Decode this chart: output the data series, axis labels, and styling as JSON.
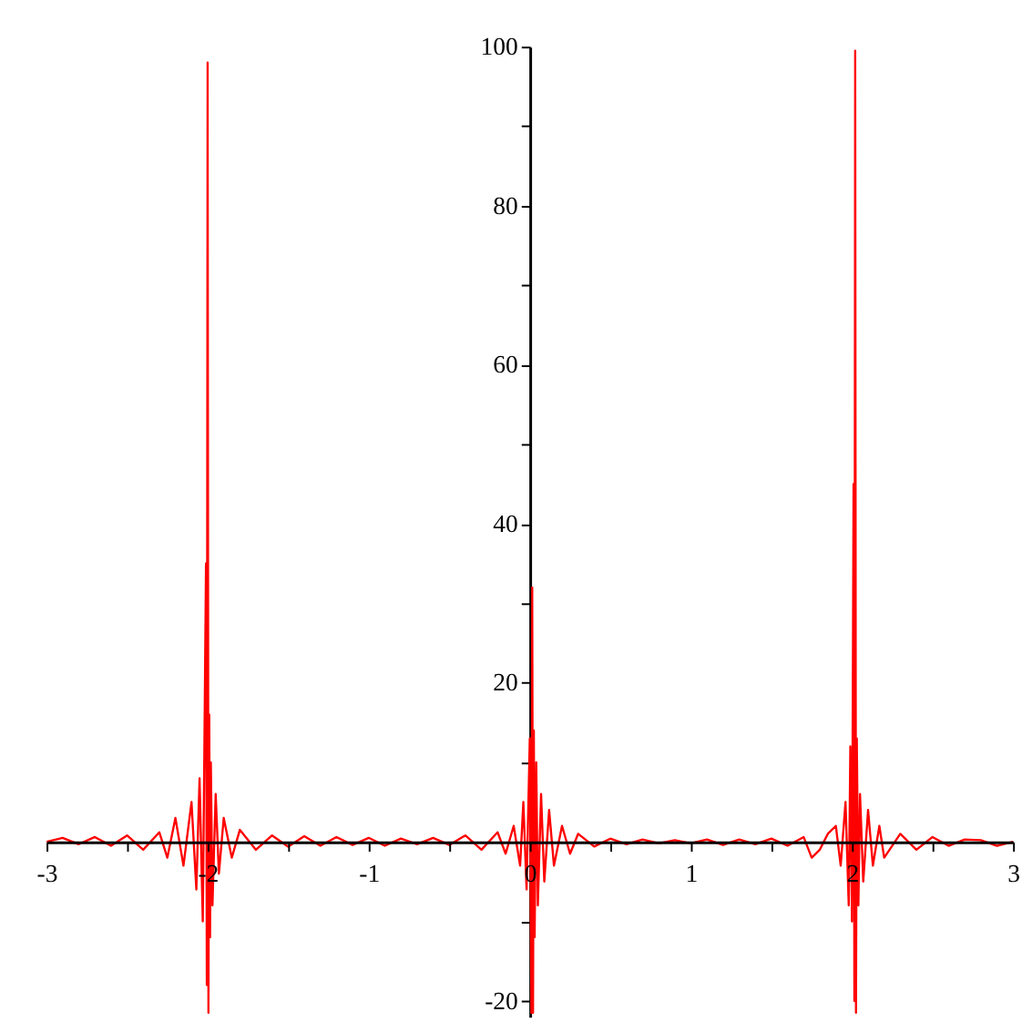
{
  "chart_data": {
    "type": "line",
    "x": [
      -3,
      -2.9,
      -2.8,
      -2.7,
      -2.6,
      -2.5,
      -2.4,
      -2.3,
      -2.25,
      -2.2,
      -2.15,
      -2.1,
      -2.07,
      -2.05,
      -2.03,
      -2.02,
      -2.01,
      -2.005,
      -2.0,
      -1.995,
      -1.99,
      -1.985,
      -1.98,
      -1.97,
      -1.95,
      -1.93,
      -1.9,
      -1.85,
      -1.8,
      -1.7,
      -1.6,
      -1.5,
      -1.4,
      -1.3,
      -1.2,
      -1.1,
      -1.0,
      -0.9,
      -0.8,
      -0.7,
      -0.6,
      -0.5,
      -0.4,
      -0.3,
      -0.2,
      -0.15,
      -0.1,
      -0.06,
      -0.04,
      -0.02,
      0.0,
      0.01,
      0.015,
      0.02,
      0.025,
      0.03,
      0.04,
      0.05,
      0.07,
      0.09,
      0.12,
      0.15,
      0.2,
      0.25,
      0.3,
      0.4,
      0.5,
      0.6,
      0.7,
      0.8,
      0.9,
      1.0,
      1.1,
      1.2,
      1.3,
      1.4,
      1.5,
      1.6,
      1.7,
      1.75,
      1.8,
      1.85,
      1.9,
      1.93,
      1.96,
      1.98,
      1.99,
      2.0,
      2.01,
      2.015,
      2.02,
      2.025,
      2.03,
      2.04,
      2.05,
      2.07,
      2.1,
      2.13,
      2.17,
      2.2,
      2.3,
      2.4,
      2.5,
      2.6,
      2.7,
      2.8,
      2.9,
      3.0
    ],
    "series": [
      {
        "color": "#ff0000",
        "values": [
          0,
          0.5,
          -0.3,
          0.6,
          -0.5,
          0.8,
          -1,
          1.2,
          -2,
          3,
          -3,
          5,
          -6,
          8,
          -10,
          12,
          35,
          -18,
          98,
          -21.5,
          16,
          -12,
          10,
          -8,
          6,
          -4,
          3,
          -2,
          1.5,
          -1,
          0.8,
          -0.6,
          0.7,
          -0.5,
          0.6,
          -0.4,
          0.5,
          -0.5,
          0.4,
          -0.3,
          0.5,
          -0.4,
          0.8,
          -1,
          1.2,
          -1.5,
          2,
          -3,
          5,
          -6,
          13,
          -21.5,
          32,
          -21.5,
          14,
          -12,
          10,
          -8,
          6,
          -5,
          4,
          -3,
          2,
          -1.5,
          1,
          -0.6,
          0.4,
          -0.3,
          0.3,
          -0.2,
          0.2,
          -0.2,
          0.3,
          -0.4,
          0.3,
          -0.3,
          0.4,
          -0.5,
          0.6,
          -2,
          -1,
          1,
          2,
          -3,
          5,
          -8,
          12,
          -10,
          45,
          -20,
          99.5,
          -21.5,
          13,
          -8,
          6,
          -5,
          4,
          -3,
          2,
          -2,
          1,
          -1,
          0.6,
          -0.5,
          0.3,
          0.2,
          -0.5,
          0
        ]
      }
    ],
    "xlim": [
      -3,
      3
    ],
    "ylim": [
      -22,
      100
    ],
    "xticks": [
      -3,
      {
        "value": -2.5,
        "label": null
      },
      -2,
      {
        "value": -1.5,
        "label": null
      },
      -1,
      {
        "value": -0.5,
        "label": null
      },
      0,
      {
        "value": 0.5,
        "label": null
      },
      1,
      {
        "value": 1.5,
        "label": null
      },
      2,
      {
        "value": 2.5,
        "label": null
      },
      3
    ],
    "yticks": [
      -20,
      {
        "value": -10,
        "label": null
      },
      {
        "value": 10,
        "label": null
      },
      20,
      {
        "value": 30,
        "label": null
      },
      40,
      {
        "value": 50,
        "label": null
      },
      60,
      {
        "value": 70,
        "label": null
      },
      80,
      {
        "value": 90,
        "label": null
      },
      100
    ],
    "grid": false,
    "marker": "none",
    "line_style": "solid"
  }
}
